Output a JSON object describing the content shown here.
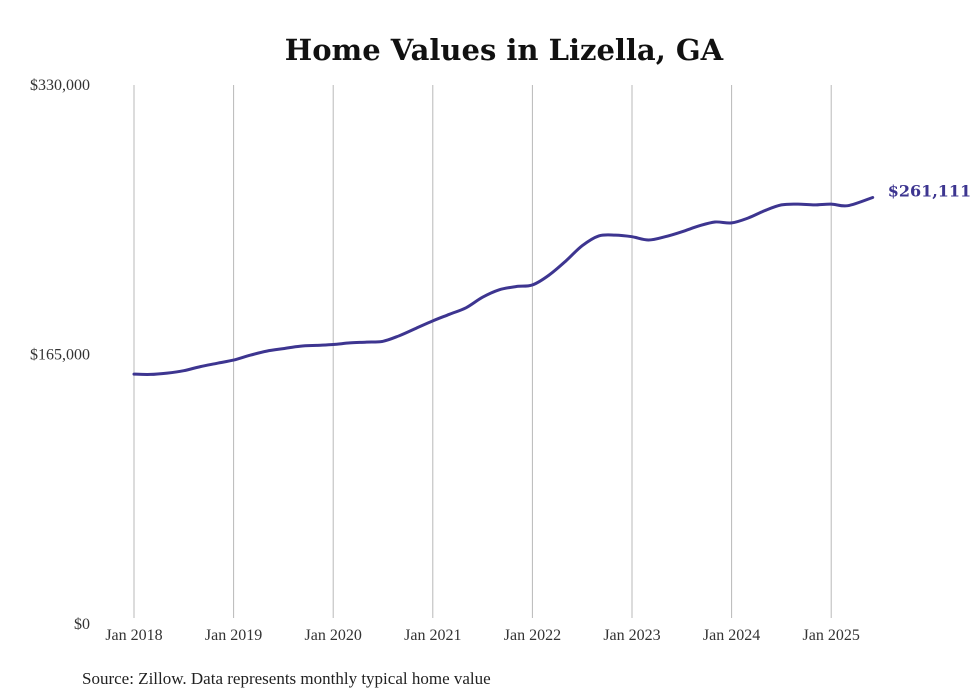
{
  "chart_data": {
    "type": "line",
    "title": "Home Values in Lizella, GA",
    "xlabel": "",
    "ylabel": "",
    "ylim": [
      0,
      330000
    ],
    "xlim": [
      "2018-01",
      "2025-06"
    ],
    "grid": {
      "vertical": true,
      "horizontal": false
    },
    "legend": "none",
    "y_ticks": [
      {
        "value": 0,
        "label": "$0"
      },
      {
        "value": 165000,
        "label": "$165,000"
      },
      {
        "value": 330000,
        "label": "$330,000"
      }
    ],
    "x_ticks": [
      {
        "value": "2018-01",
        "label": "Jan 2018"
      },
      {
        "value": "2019-01",
        "label": "Jan 2019"
      },
      {
        "value": "2020-01",
        "label": "Jan 2020"
      },
      {
        "value": "2021-01",
        "label": "Jan 2021"
      },
      {
        "value": "2022-01",
        "label": "Jan 2022"
      },
      {
        "value": "2023-01",
        "label": "Jan 2023"
      },
      {
        "value": "2024-01",
        "label": "Jan 2024"
      },
      {
        "value": "2025-01",
        "label": "Jan 2025"
      }
    ],
    "series": [
      {
        "color": "#3d3590",
        "end_label": "$261,111",
        "x": [
          "2018-01",
          "2018-03",
          "2018-05",
          "2018-07",
          "2018-09",
          "2018-11",
          "2019-01",
          "2019-03",
          "2019-05",
          "2019-07",
          "2019-09",
          "2019-11",
          "2020-01",
          "2020-03",
          "2020-05",
          "2020-07",
          "2020-09",
          "2020-11",
          "2021-01",
          "2021-03",
          "2021-05",
          "2021-07",
          "2021-09",
          "2021-11",
          "2022-01",
          "2022-03",
          "2022-05",
          "2022-07",
          "2022-09",
          "2022-11",
          "2023-01",
          "2023-03",
          "2023-05",
          "2023-07",
          "2023-09",
          "2023-11",
          "2024-01",
          "2024-03",
          "2024-05",
          "2024-07",
          "2024-09",
          "2024-11",
          "2025-01",
          "2025-03",
          "2025-06"
        ],
        "values": [
          153000,
          152800,
          153600,
          155100,
          157600,
          159600,
          161600,
          164600,
          167100,
          168600,
          170100,
          170600,
          171100,
          172100,
          172600,
          173100,
          176600,
          181100,
          185600,
          189600,
          193600,
          200100,
          204600,
          206600,
          207600,
          213600,
          222100,
          231600,
          237600,
          238100,
          237100,
          235100,
          237100,
          240100,
          243600,
          246100,
          245600,
          248600,
          253100,
          256600,
          257100,
          256600,
          257100,
          256100,
          261111
        ]
      }
    ]
  },
  "source_note": "Source: Zillow. Data represents monthly typical home value"
}
